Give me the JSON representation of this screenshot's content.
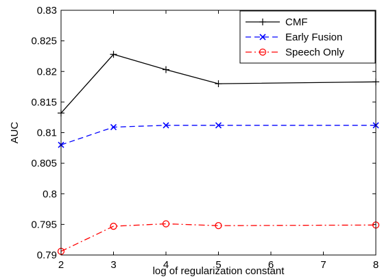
{
  "chart_data": {
    "type": "line",
    "x": [
      2,
      3,
      4,
      5,
      8
    ],
    "xlabel": "log of regularization constant",
    "ylabel": "AUC",
    "xlim": [
      2,
      8
    ],
    "ylim": [
      0.79,
      0.83
    ],
    "xticks": [
      "2",
      "3",
      "4",
      "5",
      "6",
      "7",
      "8"
    ],
    "yticks": [
      "0.79",
      "0.795",
      "0.8",
      "0.805",
      "0.81",
      "0.815",
      "0.82",
      "0.825",
      "0.83"
    ],
    "grid": false,
    "legend_position": "top-right",
    "series": [
      {
        "name": "CMF",
        "values": [
          0.8132,
          0.8228,
          0.8203,
          0.818,
          0.8183
        ],
        "color": "#000000",
        "dash": "solid",
        "marker": "plus"
      },
      {
        "name": "Early Fusion",
        "values": [
          0.808,
          0.8109,
          0.8112,
          0.8112,
          0.8112
        ],
        "color": "#0000ff",
        "dash": "dashed",
        "marker": "x"
      },
      {
        "name": "Speech Only",
        "values": [
          0.7906,
          0.7947,
          0.7951,
          0.7948,
          0.7949
        ],
        "color": "#ff0000",
        "dash": "dashdot",
        "marker": "circle"
      }
    ]
  }
}
